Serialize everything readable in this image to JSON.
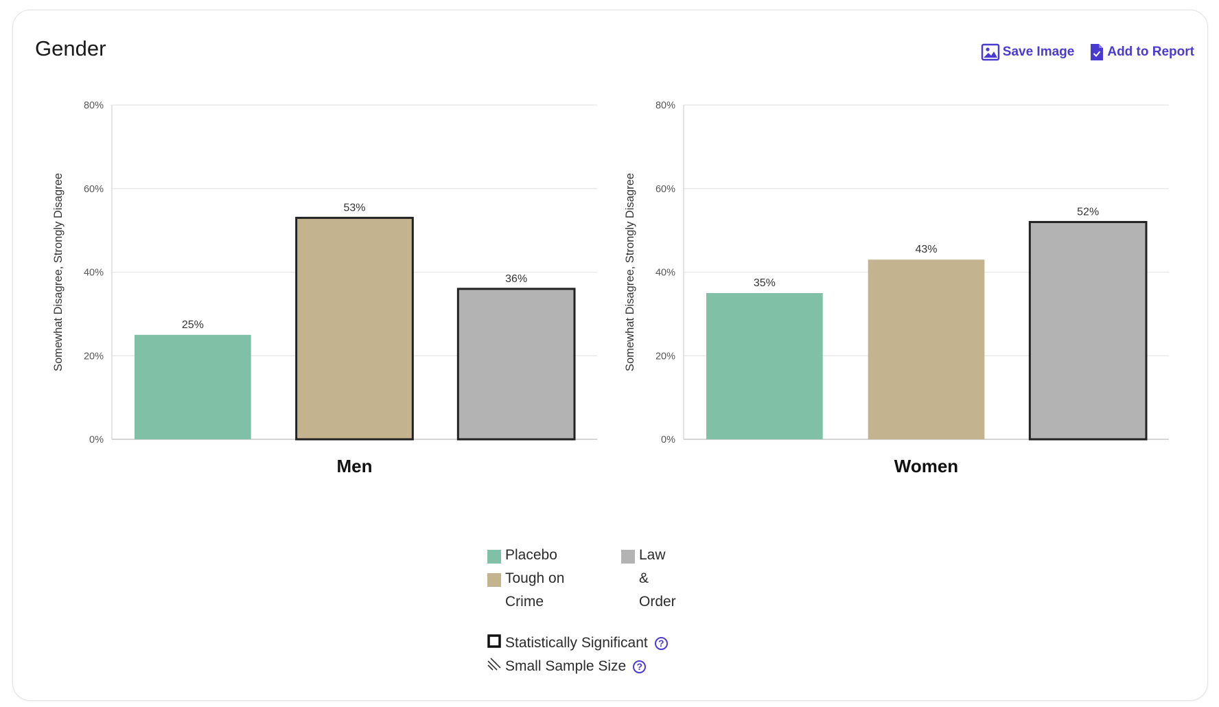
{
  "card": {
    "title": "Gender"
  },
  "actions": {
    "save_image": "Save Image",
    "add_to_report": "Add to Report"
  },
  "colors": {
    "placebo": "#7fc0a7",
    "tough_on_crime": "#c4b38f",
    "law_and_order": "#b3b3b3",
    "accent": "#4a3bd0"
  },
  "chart_data": [
    {
      "type": "bar",
      "title": "Men",
      "ylabel": "Somewhat Disagree, Strongly Disagree",
      "ylim": [
        0,
        80
      ],
      "yticks": [
        "0%",
        "20%",
        "40%",
        "60%",
        "80%"
      ],
      "categories": [
        "Placebo",
        "Tough on Crime",
        "Law & Order"
      ],
      "values": [
        25,
        53,
        36
      ],
      "value_labels": [
        "25%",
        "53%",
        "36%"
      ],
      "significant": [
        false,
        true,
        true
      ],
      "grid": true
    },
    {
      "type": "bar",
      "title": "Women",
      "ylabel": "Somewhat Disagree, Strongly Disagree",
      "ylim": [
        0,
        80
      ],
      "yticks": [
        "0%",
        "20%",
        "40%",
        "60%",
        "80%"
      ],
      "categories": [
        "Placebo",
        "Tough on Crime",
        "Law & Order"
      ],
      "values": [
        35,
        43,
        52
      ],
      "value_labels": [
        "35%",
        "43%",
        "52%"
      ],
      "significant": [
        false,
        false,
        true
      ],
      "grid": true
    }
  ],
  "legend": {
    "items": [
      {
        "label": "Placebo",
        "color": "#7fc0a7"
      },
      {
        "label": "Tough on Crime",
        "color": "#c4b38f"
      },
      {
        "label": "Law & Order",
        "color": "#b3b3b3"
      }
    ],
    "statistically_significant": "Statistically Significant",
    "small_sample_size": "Small Sample Size",
    "help_glyph": "?"
  }
}
